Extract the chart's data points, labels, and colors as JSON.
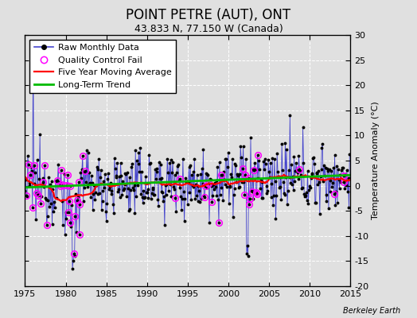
{
  "title": "POINT PETRE (AUT), ONT",
  "subtitle": "43.833 N, 77.150 W (Canada)",
  "ylabel_right": "Temperature Anomaly (°C)",
  "credit": "Berkeley Earth",
  "xlim": [
    1975,
    2015
  ],
  "ylim": [
    -20,
    30
  ],
  "yticks": [
    -20,
    -15,
    -10,
    -5,
    0,
    5,
    10,
    15,
    20,
    25,
    30
  ],
  "xticks": [
    1975,
    1980,
    1985,
    1990,
    1995,
    2000,
    2005,
    2010,
    2015
  ],
  "background_color": "#e0e0e0",
  "grid_color": "#ffffff",
  "raw_line_color": "#4444cc",
  "raw_dot_color": "#000000",
  "qc_fail_color": "#ff00ff",
  "moving_avg_color": "#ff0000",
  "trend_color": "#00bb00",
  "title_fontsize": 12,
  "subtitle_fontsize": 9,
  "ylabel_fontsize": 8,
  "tick_fontsize": 8,
  "legend_fontsize": 8,
  "credit_fontsize": 7
}
